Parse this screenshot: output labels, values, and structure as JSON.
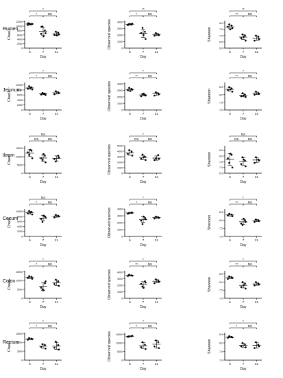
{
  "row_labels": [
    "Rumen",
    "Jejunum",
    "Ileum",
    "Cecum",
    "Colon",
    "Rectum"
  ],
  "chart_data": [
    {
      "row": 0,
      "col": 0,
      "type": "scatter",
      "ylabel": "Chao1",
      "xlabel": "Day",
      "categories": [
        "6",
        "7",
        "21"
      ],
      "yticks": [
        "0",
        "2000",
        "4000",
        "6000",
        "8000",
        "10000",
        "12000"
      ],
      "ylim": [
        0,
        12500
      ],
      "groups": [
        [
          10500,
          10900,
          11200,
          11000,
          10800,
          11300
        ],
        [
          6500,
          8000,
          9800,
          6800,
          5300,
          9700
        ],
        [
          6000,
          7000,
          7500,
          6200,
          5800
        ]
      ],
      "sig": [
        {
          "a": 0,
          "b": 1,
          "label": "*"
        },
        {
          "a": 1,
          "b": 2,
          "label": "NS"
        },
        {
          "a": 0,
          "b": 2,
          "label": "*"
        }
      ]
    },
    {
      "row": 0,
      "col": 1,
      "type": "scatter",
      "ylabel": "Observed species",
      "xlabel": "Day",
      "categories": [
        "6",
        "7",
        "21"
      ],
      "yticks": [
        "0",
        "1000",
        "2000",
        "3000",
        "4000"
      ],
      "ylim": [
        0,
        4200
      ],
      "groups": [
        [
          3500,
          3600,
          3700,
          3750,
          3650
        ],
        [
          2300,
          2500,
          3100,
          1400,
          2000
        ],
        [
          1900,
          2100,
          2300,
          2000
        ]
      ],
      "sig": [
        {
          "a": 0,
          "b": 1,
          "label": "*"
        },
        {
          "a": 1,
          "b": 2,
          "label": "NS"
        },
        {
          "a": 0,
          "b": 2,
          "label": "**"
        }
      ]
    },
    {
      "row": 0,
      "col": 2,
      "type": "scatter",
      "ylabel": "Shannon",
      "xlabel": "Day",
      "categories": [
        "6",
        "7",
        "21"
      ],
      "yticks": [
        "6.0",
        "6.5",
        "7.0",
        "7.5",
        "8.0"
      ],
      "ylim": [
        6.0,
        8.2
      ],
      "groups": [
        [
          7.7,
          7.8,
          7.9,
          7.6,
          7.5
        ],
        [
          6.8,
          7.0,
          7.1,
          6.6,
          6.9
        ],
        [
          6.6,
          6.9,
          7.0,
          6.7
        ]
      ],
      "sig": [
        {
          "a": 0,
          "b": 1,
          "label": "**"
        },
        {
          "a": 1,
          "b": 2,
          "label": "NS"
        },
        {
          "a": 0,
          "b": 2,
          "label": "**"
        }
      ]
    },
    {
      "row": 1,
      "col": 0,
      "type": "scatter",
      "ylabel": "Chao1",
      "xlabel": "Day",
      "categories": [
        "6",
        "7",
        "21"
      ],
      "yticks": [
        "0",
        "2000",
        "4000",
        "6000",
        "8000",
        "10000"
      ],
      "ylim": [
        0,
        11000
      ],
      "groups": [
        [
          8500,
          9000,
          9500,
          8200,
          8800
        ],
        [
          6200,
          6500,
          6800,
          6000,
          6600
        ],
        [
          6300,
          7000,
          7500,
          6700
        ]
      ],
      "sig": [
        {
          "a": 0,
          "b": 1,
          "label": "*"
        },
        {
          "a": 1,
          "b": 2,
          "label": "NS"
        },
        {
          "a": 0,
          "b": 2,
          "label": "*"
        }
      ]
    },
    {
      "row": 1,
      "col": 1,
      "type": "scatter",
      "ylabel": "Observed species",
      "xlabel": "Day",
      "categories": [
        "6",
        "7",
        "21"
      ],
      "yticks": [
        "0",
        "1000",
        "2000",
        "3000",
        "4000"
      ],
      "ylim": [
        0,
        4200
      ],
      "groups": [
        [
          3000,
          3200,
          3400,
          3100,
          2900
        ],
        [
          2100,
          2300,
          2400,
          2200,
          2500
        ],
        [
          2200,
          2500,
          2700,
          2400
        ]
      ],
      "sig": [
        {
          "a": 0,
          "b": 1,
          "label": "**"
        },
        {
          "a": 1,
          "b": 2,
          "label": "NS"
        },
        {
          "a": 0,
          "b": 2,
          "label": "*"
        }
      ]
    },
    {
      "row": 1,
      "col": 2,
      "type": "scatter",
      "ylabel": "Shannon",
      "xlabel": "Day",
      "categories": [
        "6",
        "7",
        "21"
      ],
      "yticks": [
        "7.0",
        "7.5",
        "8.0",
        "8.5"
      ],
      "ylim": [
        7.0,
        8.8
      ],
      "groups": [
        [
          8.3,
          8.4,
          8.5,
          8.2,
          8.35
        ],
        [
          7.9,
          8.0,
          8.1,
          7.85,
          7.95
        ],
        [
          8.0,
          8.1,
          8.2,
          8.05
        ]
      ],
      "sig": [
        {
          "a": 0,
          "b": 1,
          "label": "**"
        },
        {
          "a": 1,
          "b": 2,
          "label": "NS"
        },
        {
          "a": 0,
          "b": 2,
          "label": "*"
        }
      ]
    },
    {
      "row": 2,
      "col": 0,
      "type": "scatter",
      "ylabel": "Chao1",
      "xlabel": "Day",
      "categories": [
        "6",
        "7",
        "21"
      ],
      "yticks": [
        "0",
        "5000",
        "10000",
        "15000"
      ],
      "ylim": [
        0,
        16500
      ],
      "groups": [
        [
          12500,
          13500,
          11000,
          9000,
          14000
        ],
        [
          9000,
          10500,
          8000,
          6500,
          11500
        ],
        [
          8500,
          10500,
          7000,
          9500
        ]
      ],
      "sig": [
        {
          "a": 0,
          "b": 1,
          "label": "NS"
        },
        {
          "a": 1,
          "b": 2,
          "label": "NS"
        },
        {
          "a": 0,
          "b": 2,
          "label": "NS"
        }
      ]
    },
    {
      "row": 2,
      "col": 1,
      "type": "scatter",
      "ylabel": "Observed species",
      "xlabel": "Day",
      "categories": [
        "6",
        "7",
        "21"
      ],
      "yticks": [
        "0",
        "1000",
        "2000",
        "3000",
        "4000",
        "5000"
      ],
      "ylim": [
        0,
        5000
      ],
      "groups": [
        [
          3500,
          3900,
          4200,
          3200
        ],
        [
          2600,
          3000,
          3400,
          2400,
          2900
        ],
        [
          2400,
          3300,
          2700,
          2600
        ]
      ],
      "sig": [
        {
          "a": 0,
          "b": 1,
          "label": "NS"
        },
        {
          "a": 1,
          "b": 2,
          "label": "NS"
        },
        {
          "a": 0,
          "b": 2,
          "label": "*"
        }
      ]
    },
    {
      "row": 2,
      "col": 2,
      "type": "scatter",
      "ylabel": "Shannon",
      "xlabel": "Day",
      "categories": [
        "6",
        "7",
        "21"
      ],
      "yticks": [
        "6.5",
        "7.0",
        "7.5",
        "8.0",
        "8.5"
      ],
      "ylim": [
        6.5,
        8.9
      ],
      "groups": [
        [
          7.8,
          8.1,
          7.4,
          7.0,
          8.2
        ],
        [
          7.3,
          7.6,
          7.9,
          7.1,
          7.7
        ],
        [
          7.4,
          7.7,
          7.9,
          7.6
        ]
      ],
      "sig": [
        {
          "a": 0,
          "b": 1,
          "label": "NS"
        },
        {
          "a": 1,
          "b": 2,
          "label": "NS"
        },
        {
          "a": 0,
          "b": 2,
          "label": "NS"
        }
      ]
    },
    {
      "row": 3,
      "col": 0,
      "type": "scatter",
      "ylabel": "Chao1",
      "xlabel": "Day",
      "categories": [
        "6",
        "7",
        "21"
      ],
      "yticks": [
        "0",
        "2000",
        "4000",
        "6000",
        "8000",
        "10000"
      ],
      "ylim": [
        0,
        11000
      ],
      "groups": [
        [
          9200,
          9800,
          10200,
          8800,
          9500
        ],
        [
          7000,
          8000,
          5800,
          7600,
          8300
        ],
        [
          7600,
          8200,
          8600,
          8000
        ]
      ],
      "sig": [
        {
          "a": 0,
          "b": 1,
          "label": "*"
        },
        {
          "a": 1,
          "b": 2,
          "label": "NS"
        },
        {
          "a": 0,
          "b": 2,
          "label": "NS"
        }
      ]
    },
    {
      "row": 3,
      "col": 1,
      "type": "scatter",
      "ylabel": "Observed species",
      "xlabel": "Day",
      "categories": [
        "6",
        "7",
        "21"
      ],
      "yticks": [
        "0",
        "1000",
        "2000",
        "3000",
        "4000"
      ],
      "ylim": [
        0,
        4000
      ],
      "groups": [
        [
          3300,
          3500,
          3400,
          3450
        ],
        [
          2300,
          2700,
          1800,
          2500,
          2900
        ],
        [
          2600,
          2800,
          2900,
          2700
        ]
      ],
      "sig": [
        {
          "a": 0,
          "b": 1,
          "label": "*"
        },
        {
          "a": 1,
          "b": 2,
          "label": "NS"
        },
        {
          "a": 0,
          "b": 2,
          "label": "*"
        }
      ]
    },
    {
      "row": 3,
      "col": 2,
      "type": "scatter",
      "ylabel": "Shannon",
      "xlabel": "Day",
      "categories": [
        "6",
        "7",
        "21"
      ],
      "yticks": [
        "7.0",
        "7.5",
        "8.0",
        "8.5"
      ],
      "ylim": [
        7.0,
        8.7
      ],
      "groups": [
        [
          8.3,
          8.35,
          8.4,
          8.25
        ],
        [
          7.8,
          8.0,
          7.7,
          7.9,
          8.1
        ],
        [
          7.9,
          8.0,
          8.05,
          7.95
        ]
      ],
      "sig": [
        {
          "a": 0,
          "b": 1,
          "label": "**"
        },
        {
          "a": 1,
          "b": 2,
          "label": "NS"
        },
        {
          "a": 0,
          "b": 2,
          "label": "*"
        }
      ]
    },
    {
      "row": 4,
      "col": 0,
      "type": "scatter",
      "ylabel": "Chao1",
      "xlabel": "Day",
      "categories": [
        "6",
        "7",
        "21"
      ],
      "yticks": [
        "0",
        "5000",
        "10000",
        "15000"
      ],
      "ylim": [
        0,
        15500
      ],
      "groups": [
        [
          11500,
          12000,
          12500,
          11000
        ],
        [
          6000,
          8500,
          5000,
          9500,
          4500
        ],
        [
          8000,
          9500,
          10500,
          7000
        ]
      ],
      "sig": [
        {
          "a": 0,
          "b": 1,
          "label": "*"
        },
        {
          "a": 1,
          "b": 2,
          "label": "NS"
        },
        {
          "a": 0,
          "b": 2,
          "label": "*"
        }
      ]
    },
    {
      "row": 4,
      "col": 1,
      "type": "scatter",
      "ylabel": "Observed species",
      "xlabel": "Day",
      "categories": [
        "6",
        "7",
        "21"
      ],
      "yticks": [
        "0",
        "1000",
        "2000",
        "3000",
        "4000"
      ],
      "ylim": [
        0,
        4200
      ],
      "groups": [
        [
          3400,
          3500,
          3600,
          3450
        ],
        [
          2200,
          2600,
          1800,
          2400,
          1600
        ],
        [
          2300,
          2700,
          2900,
          2500
        ]
      ],
      "sig": [
        {
          "a": 0,
          "b": 1,
          "label": "**"
        },
        {
          "a": 1,
          "b": 2,
          "label": "NS"
        },
        {
          "a": 0,
          "b": 2,
          "label": "*"
        }
      ]
    },
    {
      "row": 4,
      "col": 2,
      "type": "scatter",
      "ylabel": "Shannon",
      "xlabel": "Day",
      "categories": [
        "6",
        "7",
        "21"
      ],
      "yticks": [
        "7.0",
        "7.5",
        "8.0",
        "8.5"
      ],
      "ylim": [
        7.0,
        8.7
      ],
      "groups": [
        [
          8.2,
          8.3,
          8.35,
          8.25
        ],
        [
          7.7,
          7.9,
          8.0,
          7.6,
          7.8
        ],
        [
          7.8,
          7.9,
          8.0,
          7.85
        ]
      ],
      "sig": [
        {
          "a": 0,
          "b": 1,
          "label": "**"
        },
        {
          "a": 1,
          "b": 2,
          "label": "NS"
        },
        {
          "a": 0,
          "b": 2,
          "label": "*"
        }
      ]
    },
    {
      "row": 5,
      "col": 0,
      "type": "scatter",
      "ylabel": "Chao1",
      "xlabel": "Day",
      "categories": [
        "6",
        "7",
        "21"
      ],
      "yticks": [
        "0",
        "5000",
        "10000",
        "15000"
      ],
      "ylim": [
        0,
        15500
      ],
      "groups": [
        [
          11500,
          12000,
          12500,
          11800
        ],
        [
          7500,
          8500,
          9000,
          6500
        ],
        [
          7000,
          8500,
          10500,
          6000
        ]
      ],
      "sig": [
        {
          "a": 0,
          "b": 1,
          "label": "*"
        },
        {
          "a": 1,
          "b": 2,
          "label": "NS"
        },
        {
          "a": 0,
          "b": 2,
          "label": "*"
        }
      ]
    },
    {
      "row": 5,
      "col": 1,
      "type": "scatter",
      "ylabel": "Observed species",
      "xlabel": "Day",
      "categories": [
        "6",
        "7",
        "21"
      ],
      "yticks": [
        "0",
        "5000",
        "10000",
        "15000"
      ],
      "ylim": [
        0,
        16000
      ],
      "groups": [
        [
          13500,
          14000,
          13800,
          14200
        ],
        [
          7500,
          9000,
          10500,
          6500
        ],
        [
          8000,
          10500,
          11500,
          7000
        ]
      ],
      "sig": [
        {
          "a": 0,
          "b": 1,
          "label": "*"
        },
        {
          "a": 1,
          "b": 2,
          "label": "NS"
        },
        {
          "a": 0,
          "b": 2,
          "label": "*"
        }
      ]
    },
    {
      "row": 5,
      "col": 2,
      "type": "scatter",
      "ylabel": "Shannon",
      "xlabel": "Day",
      "categories": [
        "6",
        "7",
        "21"
      ],
      "yticks": [
        "7.0",
        "7.5",
        "8.0",
        "8.5"
      ],
      "ylim": [
        7.0,
        8.6
      ],
      "groups": [
        [
          8.3,
          8.35,
          8.4,
          8.32
        ],
        [
          7.8,
          7.9,
          8.0,
          7.75
        ],
        [
          7.7,
          7.9,
          8.05,
          7.8
        ]
      ],
      "sig": [
        {
          "a": 0,
          "b": 1,
          "label": "*"
        },
        {
          "a": 1,
          "b": 2,
          "label": "NS"
        },
        {
          "a": 0,
          "b": 2,
          "label": "*"
        }
      ]
    }
  ]
}
